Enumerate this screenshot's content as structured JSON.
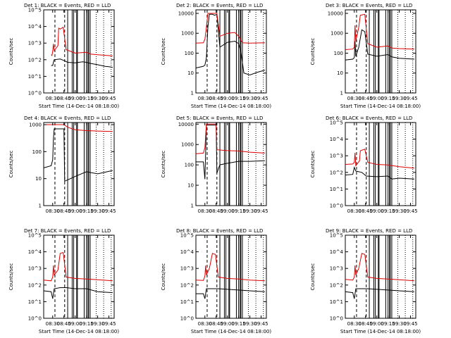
{
  "colors": {
    "events": "#000000",
    "lld": "#dd0000",
    "axes": "#000000"
  },
  "chart_data": [
    {
      "type": "line",
      "title": "Det 1: BLACK = Events, RED = LLD",
      "xlabel": "Start Time (14-Dec-14 08:18:00)",
      "ylabel": "Counts/sec",
      "x_ticks": [
        "08:30",
        "08:45",
        "09:00",
        "09:15",
        "09:30",
        "09:45"
      ],
      "y_ticks": [
        "10^0",
        "10^1",
        "10^2",
        "10^3",
        "10^4",
        "10^5"
      ],
      "ylim": [
        1,
        100000
      ],
      "log_y": true,
      "series": [
        {
          "name": "Events",
          "x": [
            "08:28",
            "08:30",
            "08:31",
            "08:32",
            "08:40",
            "08:45",
            "08:50",
            "09:00",
            "09:10",
            "09:15",
            "09:20",
            "09:30",
            "09:40",
            "09:45",
            "09:50"
          ],
          "values": [
            45,
            45,
            70,
            100,
            110,
            90,
            70,
            65,
            75,
            70,
            60,
            50,
            40,
            38,
            35
          ]
        },
        {
          "name": "LLD",
          "x": [
            "08:28",
            "08:29",
            "08:30",
            "08:31",
            "08:32",
            "08:37",
            "08:38",
            "08:40",
            "08:44",
            "08:48",
            "09:00",
            "09:15",
            "09:20",
            "09:30",
            "09:50"
          ],
          "values": [
            200,
            180,
            320,
            900,
            350,
            700,
            8000,
            7000,
            9000,
            400,
            250,
            280,
            220,
            200,
            170
          ]
        }
      ]
    },
    {
      "type": "line",
      "title": "Det 2: BLACK = Events, RED = LLD",
      "xlabel": "Start Time (14-Dec-14 08:18:00)",
      "ylabel": "Counts/sec",
      "x_ticks": [
        "08:30",
        "08:45",
        "09:00",
        "09:15",
        "09:30",
        "09:45"
      ],
      "y_ticks": [
        "1",
        "10",
        "100",
        "1000",
        "10000"
      ],
      "ylim": [
        1,
        15000
      ],
      "log_y": true,
      "series": [
        {
          "name": "Events",
          "x": [
            "08:18",
            "08:28",
            "08:30",
            "08:32",
            "08:34",
            "08:36",
            "08:40",
            "08:43",
            "08:46",
            "08:50",
            "09:00",
            "09:10",
            "09:15",
            "09:18",
            "09:22",
            "09:30",
            "09:40",
            "09:50"
          ],
          "values": [
            18,
            22,
            25,
            60,
            2000,
            9000,
            9000,
            8000,
            9000,
            200,
            350,
            400,
            300,
            120,
            10,
            8,
            11,
            14
          ]
        },
        {
          "name": "LLD",
          "x": [
            "08:18",
            "08:28",
            "08:30",
            "08:32",
            "08:34",
            "08:40",
            "08:46",
            "08:50",
            "09:00",
            "09:10",
            "09:15",
            "09:20",
            "09:30",
            "09:50"
          ],
          "values": [
            320,
            330,
            500,
            2000,
            10000,
            10000,
            10000,
            700,
            1000,
            1100,
            700,
            330,
            320,
            330
          ]
        }
      ]
    },
    {
      "type": "line",
      "title": "Det 3: BLACK = Events, RED = LLD",
      "xlabel": "Start Time (14-Dec-14 08:18:00)",
      "ylabel": "Counts/sec",
      "x_ticks": [
        "08:30",
        "08:45",
        "09:00",
        "09:15",
        "09:30",
        "09:45"
      ],
      "y_ticks": [
        "1",
        "10",
        "100",
        "1000",
        "10000"
      ],
      "ylim": [
        1,
        15000
      ],
      "log_y": true,
      "series": [
        {
          "name": "Events",
          "x": [
            "08:18",
            "08:28",
            "08:30",
            "08:31",
            "08:32",
            "08:36",
            "08:40",
            "08:44",
            "08:48",
            "09:00",
            "09:15",
            "09:20",
            "09:30",
            "09:50"
          ],
          "values": [
            45,
            50,
            60,
            400,
            70,
            200,
            1500,
            1200,
            90,
            70,
            85,
            65,
            55,
            50
          ]
        },
        {
          "name": "LLD",
          "x": [
            "08:18",
            "08:28",
            "08:30",
            "08:31",
            "08:32",
            "08:36",
            "08:38",
            "08:44",
            "08:48",
            "09:00",
            "09:15",
            "09:20",
            "09:30",
            "09:50"
          ],
          "values": [
            150,
            160,
            200,
            2500,
            400,
            2000,
            8000,
            9000,
            300,
            200,
            230,
            180,
            170,
            160
          ]
        }
      ]
    },
    {
      "type": "line",
      "title": "Det 4: BLACK = Events, RED = LLD",
      "xlabel": "",
      "ylabel": "Counts/sec",
      "x_ticks": [
        "08:30",
        "08:45",
        "09:00",
        "09:15",
        "09:30",
        "09:45"
      ],
      "y_ticks": [
        "1",
        "10",
        "100",
        "1000"
      ],
      "ylim": [
        1,
        1200
      ],
      "log_y": true,
      "series": [
        {
          "name": "Events",
          "x": [
            "08:18",
            "08:28",
            "08:30",
            "08:31",
            "08:32",
            "08:45",
            "08:46",
            "09:00",
            "09:15",
            "09:30",
            "09:50"
          ],
          "values": [
            25,
            30,
            50,
            300,
            700,
            700,
            8,
            12,
            18,
            15,
            20
          ]
        },
        {
          "name": "LLD",
          "x": [
            "08:18",
            "08:28",
            "08:30",
            "08:31",
            "08:32",
            "08:45",
            "08:50",
            "09:00",
            "09:15",
            "09:30",
            "09:50"
          ],
          "values": [
            1000,
            1000,
            1000,
            1000,
            1000,
            1000,
            800,
            650,
            600,
            580,
            560
          ]
        }
      ]
    },
    {
      "type": "line",
      "title": "Det 5: BLACK = Events, RED = LLD",
      "xlabel": "",
      "ylabel": "Counts/sec",
      "x_ticks": [
        "08:30",
        "08:45",
        "09:00",
        "09:15",
        "09:30",
        "09:45"
      ],
      "y_ticks": [
        "1",
        "10",
        "100",
        "1000",
        "10000"
      ],
      "ylim": [
        1,
        12000
      ],
      "log_y": true,
      "series": [
        {
          "name": "Events",
          "x": [
            "08:18",
            "08:28",
            "08:30",
            "08:32",
            "08:45",
            "08:46",
            "08:50",
            "09:00",
            "09:15",
            "09:30",
            "09:50"
          ],
          "values": [
            140,
            140,
            20,
            9000,
            9000,
            40,
            100,
            120,
            150,
            150,
            160
          ]
        },
        {
          "name": "LLD",
          "x": [
            "08:18",
            "08:28",
            "08:30",
            "08:32",
            "08:45",
            "08:46",
            "09:00",
            "09:15",
            "09:30",
            "09:50"
          ],
          "values": [
            350,
            380,
            700,
            10000,
            10000,
            550,
            500,
            480,
            420,
            380
          ]
        }
      ]
    },
    {
      "type": "line",
      "title": "Det 6: BLACK = Events, RED = LLD",
      "xlabel": "",
      "ylabel": "Counts/sec",
      "x_ticks": [
        "08:30",
        "08:45",
        "09:00",
        "09:15",
        "09:30",
        "09:45"
      ],
      "y_ticks": [
        "10^0",
        "10^1",
        "10^2",
        "10^3",
        "10^4",
        "10^5"
      ],
      "ylim": [
        1,
        100000
      ],
      "log_y": true,
      "series": [
        {
          "name": "Events",
          "x": [
            "08:18",
            "08:28",
            "08:30",
            "08:32",
            "08:40",
            "08:46",
            "09:00",
            "09:15",
            "09:20",
            "09:30",
            "09:50"
          ],
          "values": [
            70,
            75,
            200,
            120,
            100,
            60,
            55,
            60,
            40,
            45,
            40
          ]
        },
        {
          "name": "LLD",
          "x": [
            "08:18",
            "08:28",
            "08:30",
            "08:31",
            "08:32",
            "08:37",
            "08:38",
            "08:44",
            "08:48",
            "09:00",
            "09:15",
            "09:30",
            "09:50"
          ],
          "values": [
            300,
            320,
            400,
            1500,
            250,
            500,
            2000,
            2500,
            400,
            300,
            280,
            220,
            180
          ]
        }
      ]
    },
    {
      "type": "line",
      "title": "Det 7: BLACK = Events, RED = LLD",
      "xlabel": "Start Time (14-Dec-14 08:18:00)",
      "ylabel": "Counts/sec",
      "x_ticks": [
        "08:30",
        "08:45",
        "09:00",
        "09:15",
        "09:30",
        "09:45"
      ],
      "y_ticks": [
        "10^0",
        "10^1",
        "10^2",
        "10^3",
        "10^4",
        "10^5"
      ],
      "ylim": [
        1,
        100000
      ],
      "log_y": true,
      "series": [
        {
          "name": "Events",
          "x": [
            "08:18",
            "08:28",
            "08:30",
            "08:32",
            "08:40",
            "08:48",
            "09:00",
            "09:15",
            "09:30",
            "09:50"
          ],
          "values": [
            45,
            40,
            15,
            60,
            70,
            70,
            60,
            60,
            40,
            35
          ]
        },
        {
          "name": "LLD",
          "x": [
            "08:18",
            "08:28",
            "08:30",
            "08:31",
            "08:32",
            "08:37",
            "08:40",
            "08:44",
            "08:48",
            "09:00",
            "09:15",
            "09:30",
            "09:50"
          ],
          "values": [
            200,
            180,
            300,
            1500,
            400,
            800,
            8000,
            9000,
            300,
            250,
            230,
            210,
            180
          ]
        }
      ]
    },
    {
      "type": "line",
      "title": "Det 8: BLACK = Events, RED = LLD",
      "xlabel": "Start Time (14-Dec-14 08:18:00)",
      "ylabel": "Counts/sec",
      "x_ticks": [
        "08:30",
        "08:45",
        "09:00",
        "09:15",
        "09:30",
        "09:45"
      ],
      "y_ticks": [
        "10^0",
        "10^1",
        "10^2",
        "10^3",
        "10^4",
        "10^5"
      ],
      "ylim": [
        1,
        100000
      ],
      "log_y": true,
      "series": [
        {
          "name": "Events",
          "x": [
            "08:18",
            "08:28",
            "08:30",
            "08:32",
            "08:40",
            "08:48",
            "09:00",
            "09:15",
            "09:30",
            "09:50"
          ],
          "values": [
            30,
            30,
            15,
            60,
            60,
            60,
            55,
            50,
            45,
            40
          ]
        },
        {
          "name": "LLD",
          "x": [
            "08:18",
            "08:28",
            "08:30",
            "08:31",
            "08:32",
            "08:36",
            "08:40",
            "08:44",
            "08:48",
            "09:00",
            "09:15",
            "09:30",
            "09:50"
          ],
          "values": [
            200,
            190,
            350,
            1500,
            400,
            1000,
            8000,
            7000,
            300,
            250,
            230,
            200,
            180
          ]
        }
      ]
    },
    {
      "type": "line",
      "title": "Det 9: BLACK = Events, RED = LLD",
      "xlabel": "Start Time (14-Dec-14 08:18:00)",
      "ylabel": "Counts/sec",
      "x_ticks": [
        "08:30",
        "08:45",
        "09:00",
        "09:15",
        "09:30",
        "09:45"
      ],
      "y_ticks": [
        "10^0",
        "10^1",
        "10^2",
        "10^3",
        "10^4",
        "10^5"
      ],
      "ylim": [
        1,
        100000
      ],
      "log_y": true,
      "series": [
        {
          "name": "Events",
          "x": [
            "08:18",
            "08:28",
            "08:30",
            "08:32",
            "08:40",
            "08:48",
            "09:00",
            "09:15",
            "09:30",
            "09:50"
          ],
          "values": [
            40,
            35,
            15,
            60,
            60,
            60,
            55,
            50,
            45,
            40
          ]
        },
        {
          "name": "LLD",
          "x": [
            "08:18",
            "08:28",
            "08:30",
            "08:31",
            "08:32",
            "08:36",
            "08:40",
            "08:44",
            "08:48",
            "09:00",
            "09:15",
            "09:30",
            "09:50"
          ],
          "values": [
            220,
            200,
            300,
            1500,
            400,
            1000,
            8000,
            7000,
            300,
            250,
            230,
            210,
            180
          ]
        }
      ]
    }
  ]
}
